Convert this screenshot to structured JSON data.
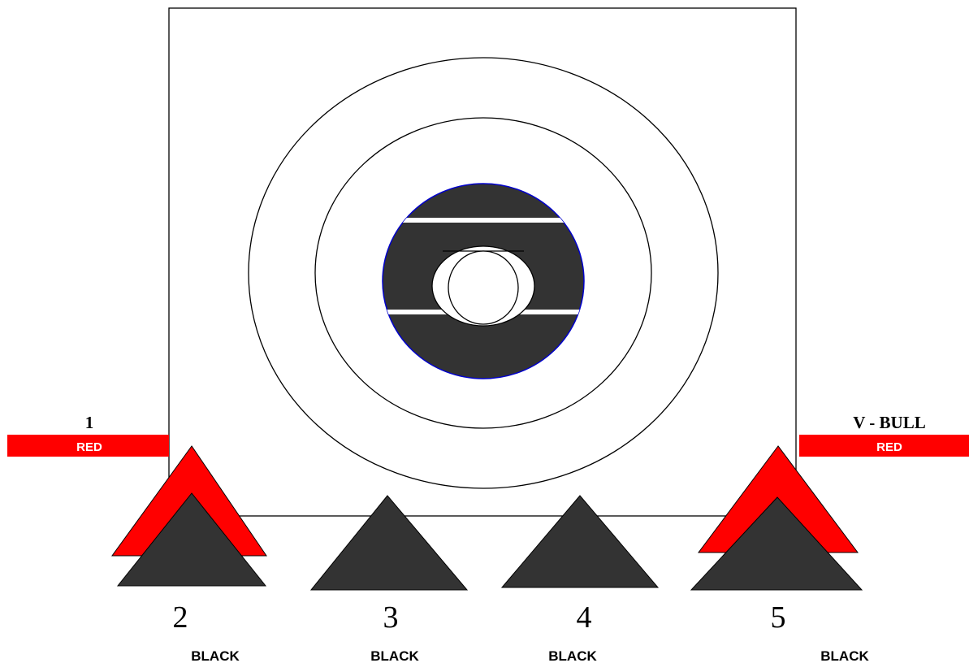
{
  "colors": {
    "red": "#ff0000",
    "dark": "#333333",
    "outline": "#000000",
    "bull_border": "#0000cc",
    "background": "#ffffff"
  },
  "left_marker": {
    "number": "1",
    "color_label": "RED"
  },
  "right_marker": {
    "title": "V - BULL",
    "color_label": "RED"
  },
  "bottom_markers": [
    {
      "number": "2",
      "color_label": "BLACK"
    },
    {
      "number": "3",
      "color_label": "BLACK"
    },
    {
      "number": "4",
      "color_label": "BLACK"
    },
    {
      "number": "5",
      "color_label": "BLACK"
    }
  ]
}
